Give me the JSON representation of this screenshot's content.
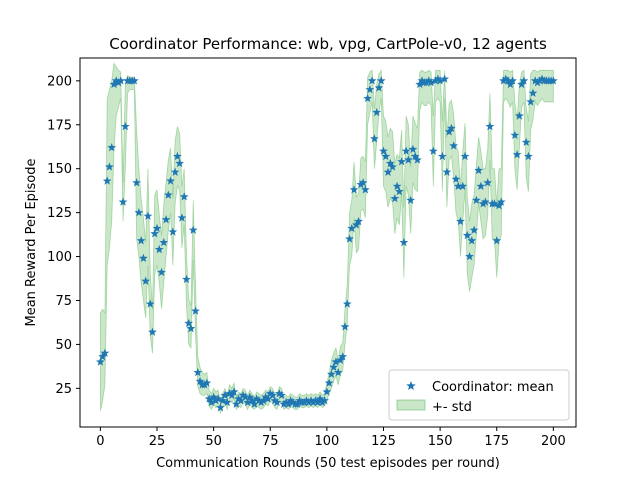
{
  "colors": {
    "marker": "#1f77b4",
    "band_fill": "#2ca02c",
    "band_opacity": 0.25,
    "axis": "#000000",
    "background": "#ffffff"
  },
  "chart_data": {
    "type": "scatter",
    "title": "Coordinator Performance: wb, vpg, CartPole-v0, 12 agents",
    "xlabel": "Communication Rounds (50 test episodes per round)",
    "ylabel": "Mean Reward Per Episode",
    "xlim": [
      -9,
      210
    ],
    "ylim": [
      3,
      213
    ],
    "xticks": [
      0,
      25,
      50,
      75,
      100,
      125,
      150,
      175,
      200
    ],
    "yticks": [
      25,
      50,
      75,
      100,
      125,
      150,
      175,
      200
    ],
    "grid": false,
    "legend_position": "bottom-right",
    "legend": [
      {
        "label": "Coordinator: mean",
        "kind": "star-marker"
      },
      {
        "label": "+- std",
        "kind": "band"
      }
    ],
    "series": [
      {
        "name": "Coordinator: mean",
        "marker": "star",
        "x": [
          0,
          1,
          2,
          3,
          4,
          5,
          6,
          7,
          8,
          9,
          10,
          11,
          12,
          13,
          14,
          15,
          16,
          17,
          18,
          19,
          20,
          21,
          22,
          23,
          24,
          25,
          26,
          27,
          28,
          29,
          30,
          31,
          32,
          33,
          34,
          35,
          36,
          37,
          38,
          39,
          40,
          41,
          42,
          43,
          44,
          45,
          46,
          47,
          48,
          49,
          50,
          51,
          52,
          53,
          54,
          55,
          56,
          57,
          58,
          59,
          60,
          61,
          62,
          63,
          64,
          65,
          66,
          67,
          68,
          69,
          70,
          71,
          72,
          73,
          74,
          75,
          76,
          77,
          78,
          79,
          80,
          81,
          82,
          83,
          84,
          85,
          86,
          87,
          88,
          89,
          90,
          91,
          92,
          93,
          94,
          95,
          96,
          97,
          98,
          99,
          100,
          101,
          102,
          103,
          104,
          105,
          106,
          107,
          108,
          109,
          110,
          111,
          112,
          113,
          114,
          115,
          116,
          117,
          118,
          119,
          120,
          121,
          122,
          123,
          124,
          125,
          126,
          127,
          128,
          129,
          130,
          131,
          132,
          133,
          134,
          135,
          136,
          137,
          138,
          139,
          140,
          141,
          142,
          143,
          144,
          145,
          146,
          147,
          148,
          149,
          150,
          151,
          152,
          153,
          154,
          155,
          156,
          157,
          158,
          159,
          160,
          161,
          162,
          163,
          164,
          165,
          166,
          167,
          168,
          169,
          170,
          171,
          172,
          173,
          174,
          175,
          176,
          177,
          178,
          179,
          180,
          181,
          182,
          183,
          184,
          185,
          186,
          187,
          188,
          189,
          190,
          191,
          192,
          193,
          194,
          195,
          196,
          197,
          198,
          199,
          200
        ],
        "y": [
          40,
          43,
          45,
          143,
          151,
          162,
          198,
          200,
          199,
          200,
          131,
          174,
          200,
          200,
          200,
          200,
          142,
          125,
          109,
          99,
          86,
          123,
          73,
          57,
          113,
          116,
          104,
          91,
          108,
          121,
          135,
          143,
          114,
          148,
          157,
          153,
          122,
          134,
          87,
          62,
          59,
          115,
          69,
          34,
          29,
          27,
          27,
          28,
          19,
          17,
          20,
          18,
          19,
          14,
          18,
          21,
          17,
          22,
          21,
          23,
          16,
          19,
          18,
          21,
          20,
          17,
          20,
          18,
          16,
          19,
          18,
          17,
          18,
          20,
          19,
          22,
          21,
          18,
          17,
          22,
          21,
          16,
          17,
          16,
          18,
          17,
          16,
          16,
          18,
          17,
          17,
          18,
          17,
          18,
          17,
          18,
          17,
          19,
          17,
          18,
          23,
          28,
          33,
          37,
          40,
          34,
          41,
          43,
          60,
          73,
          110,
          116,
          138,
          118,
          120,
          141,
          142,
          138,
          190,
          195,
          200,
          167,
          182,
          196,
          200,
          160,
          157,
          148,
          153,
          151,
          133,
          140,
          137,
          154,
          108,
          160,
          155,
          132,
          161,
          157,
          155,
          198,
          200,
          199,
          199,
          200,
          199,
          160,
          200,
          201,
          200,
          157,
          201,
          148,
          171,
          173,
          163,
          144,
          140,
          120,
          140,
          157,
          112,
          100,
          109,
          115,
          132,
          149,
          140,
          130,
          131,
          142,
          174,
          130,
          130,
          109,
          129,
          131,
          200,
          201,
          200,
          198,
          200,
          169,
          158,
          180,
          198,
          200,
          165,
          157,
          188,
          193,
          200,
          199,
          200,
          201,
          200,
          200,
          200,
          200,
          200
        ],
        "std_lower": [
          12,
          18,
          27,
          95,
          105,
          120,
          160,
          180,
          185,
          190,
          120,
          150,
          193,
          195,
          195,
          195,
          110,
          100,
          85,
          75,
          65,
          95,
          55,
          45,
          90,
          95,
          85,
          70,
          85,
          100,
          115,
          125,
          95,
          130,
          140,
          138,
          105,
          118,
          72,
          50,
          48,
          98,
          56,
          26,
          22,
          21,
          21,
          22,
          15,
          13,
          16,
          14,
          15,
          11,
          14,
          17,
          13,
          18,
          17,
          19,
          13,
          15,
          14,
          17,
          16,
          13,
          16,
          14,
          13,
          15,
          14,
          13,
          14,
          16,
          15,
          18,
          17,
          14,
          13,
          18,
          17,
          13,
          14,
          13,
          15,
          14,
          13,
          13,
          15,
          14,
          14,
          15,
          14,
          15,
          14,
          15,
          14,
          16,
          14,
          15,
          18,
          22,
          25,
          29,
          32,
          27,
          33,
          35,
          50,
          62,
          95,
          100,
          122,
          102,
          104,
          126,
          127,
          122,
          175,
          182,
          188,
          150,
          165,
          182,
          190,
          140,
          137,
          128,
          133,
          131,
          113,
          122,
          118,
          136,
          88,
          140,
          135,
          113,
          142,
          138,
          137,
          183,
          188,
          186,
          186,
          188,
          186,
          140,
          188,
          190,
          188,
          137,
          190,
          128,
          155,
          157,
          145,
          125,
          120,
          100,
          120,
          138,
          90,
          80,
          88,
          95,
          112,
          130,
          120,
          110,
          112,
          123,
          155,
          110,
          110,
          88,
          108,
          112,
          188,
          190,
          188,
          185,
          188,
          150,
          138,
          162,
          185,
          188,
          145,
          137,
          172,
          178,
          188,
          186,
          188,
          190,
          188,
          188,
          188,
          188,
          188
        ],
        "std_upper": [
          68,
          70,
          68,
          190,
          195,
          200,
          210,
          208,
          206,
          205,
          142,
          198,
          203,
          202,
          202,
          202,
          172,
          150,
          133,
          122,
          108,
          150,
          92,
          70,
          135,
          138,
          124,
          112,
          130,
          142,
          155,
          162,
          133,
          166,
          174,
          170,
          140,
          150,
          102,
          76,
          72,
          132,
          84,
          43,
          37,
          34,
          33,
          34,
          24,
          22,
          25,
          23,
          24,
          18,
          22,
          25,
          21,
          27,
          25,
          28,
          20,
          23,
          22,
          25,
          24,
          21,
          24,
          22,
          20,
          23,
          22,
          21,
          22,
          24,
          23,
          26,
          25,
          22,
          21,
          26,
          25,
          20,
          21,
          20,
          22,
          21,
          20,
          20,
          22,
          21,
          21,
          22,
          21,
          22,
          21,
          22,
          21,
          23,
          21,
          22,
          28,
          34,
          41,
          45,
          48,
          41,
          49,
          51,
          70,
          84,
          125,
          132,
          154,
          134,
          136,
          156,
          157,
          154,
          202,
          205,
          206,
          184,
          198,
          204,
          206,
          180,
          177,
          168,
          173,
          171,
          153,
          158,
          156,
          172,
          128,
          180,
          175,
          151,
          180,
          176,
          173,
          205,
          206,
          205,
          205,
          206,
          205,
          180,
          206,
          206,
          206,
          177,
          206,
          168,
          187,
          189,
          181,
          163,
          160,
          140,
          160,
          176,
          134,
          120,
          130,
          135,
          152,
          168,
          160,
          150,
          150,
          161,
          193,
          150,
          150,
          130,
          150,
          150,
          206,
          206,
          206,
          205,
          206,
          188,
          178,
          198,
          205,
          206,
          185,
          177,
          204,
          206,
          206,
          205,
          206,
          206,
          206,
          206,
          206,
          206,
          206
        ]
      }
    ]
  }
}
